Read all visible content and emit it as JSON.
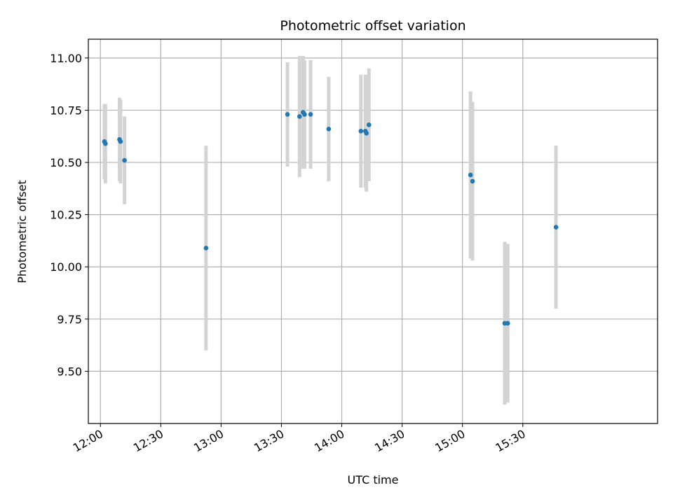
{
  "chart_data": {
    "type": "scatter",
    "title": "Photometric offset variation",
    "xlabel": "UTC time",
    "ylabel": "Photometric offset",
    "x_unit": "UTC HH:MM",
    "xlim": [
      "11:54",
      "16:37"
    ],
    "ylim": [
      9.25,
      11.09
    ],
    "x_ticks": [
      "12:00",
      "12:30",
      "13:00",
      "13:30",
      "14:00",
      "14:30",
      "15:00",
      "15:30"
    ],
    "y_ticks": [
      9.5,
      9.75,
      10.0,
      10.25,
      10.5,
      10.75,
      11.0
    ],
    "y_tick_labels": [
      "9.50",
      "9.75",
      "10.00",
      "10.25",
      "10.50",
      "10.75",
      "11.00"
    ],
    "grid": true,
    "colors": {
      "point": "#1f77b4",
      "errorbar": "#d3d3d3",
      "grid": "#b0b0b0"
    },
    "series": [
      {
        "points": [
          {
            "x": "12:02:00",
            "y": 10.6,
            "err": 0.18
          },
          {
            "x": "12:02:30",
            "y": 10.59,
            "err": 0.19
          },
          {
            "x": "12:09:30",
            "y": 10.61,
            "err": 0.2
          },
          {
            "x": "12:10:00",
            "y": 10.6,
            "err": 0.2
          },
          {
            "x": "12:12:00",
            "y": 10.51,
            "err": 0.21
          },
          {
            "x": "12:52:30",
            "y": 10.09,
            "err": 0.49
          },
          {
            "x": "13:33:00",
            "y": 10.73,
            "err": 0.25
          },
          {
            "x": "13:39:00",
            "y": 10.72,
            "err": 0.29
          },
          {
            "x": "13:40:45",
            "y": 10.74,
            "err": 0.27
          },
          {
            "x": "13:41:30",
            "y": 10.73,
            "err": 0.26
          },
          {
            "x": "13:44:30",
            "y": 10.73,
            "err": 0.26
          },
          {
            "x": "13:53:30",
            "y": 10.66,
            "err": 0.25
          },
          {
            "x": "14:09:30",
            "y": 10.65,
            "err": 0.27
          },
          {
            "x": "14:11:45",
            "y": 10.65,
            "err": 0.27
          },
          {
            "x": "14:12:15",
            "y": 10.64,
            "err": 0.28
          },
          {
            "x": "14:13:30",
            "y": 10.68,
            "err": 0.27
          },
          {
            "x": "15:04:00",
            "y": 10.44,
            "err": 0.4
          },
          {
            "x": "15:05:00",
            "y": 10.41,
            "err": 0.38
          },
          {
            "x": "15:21:00",
            "y": 9.73,
            "err": 0.39
          },
          {
            "x": "15:22:30",
            "y": 9.73,
            "err": 0.38
          },
          {
            "x": "15:46:30",
            "y": 10.19,
            "err": 0.39
          }
        ]
      }
    ]
  }
}
